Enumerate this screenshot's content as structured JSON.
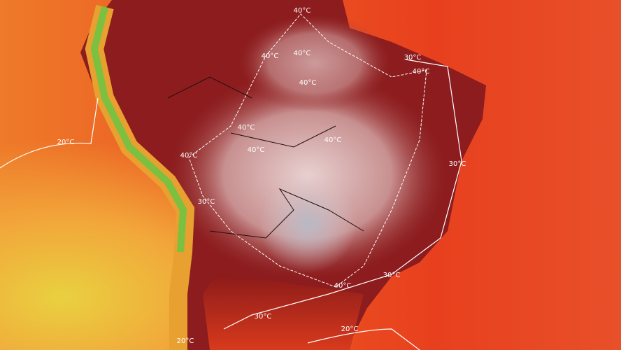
{
  "map": {
    "contour_labels": [
      "40°C",
      "40°C",
      "40°C",
      "40°C",
      "40°C",
      "40°C",
      "40°C",
      "40°C",
      "40°C",
      "40°C",
      "30°C",
      "30°C",
      "30°C",
      "30°C",
      "30°C",
      "20°C",
      "20°C",
      "20°C"
    ]
  }
}
